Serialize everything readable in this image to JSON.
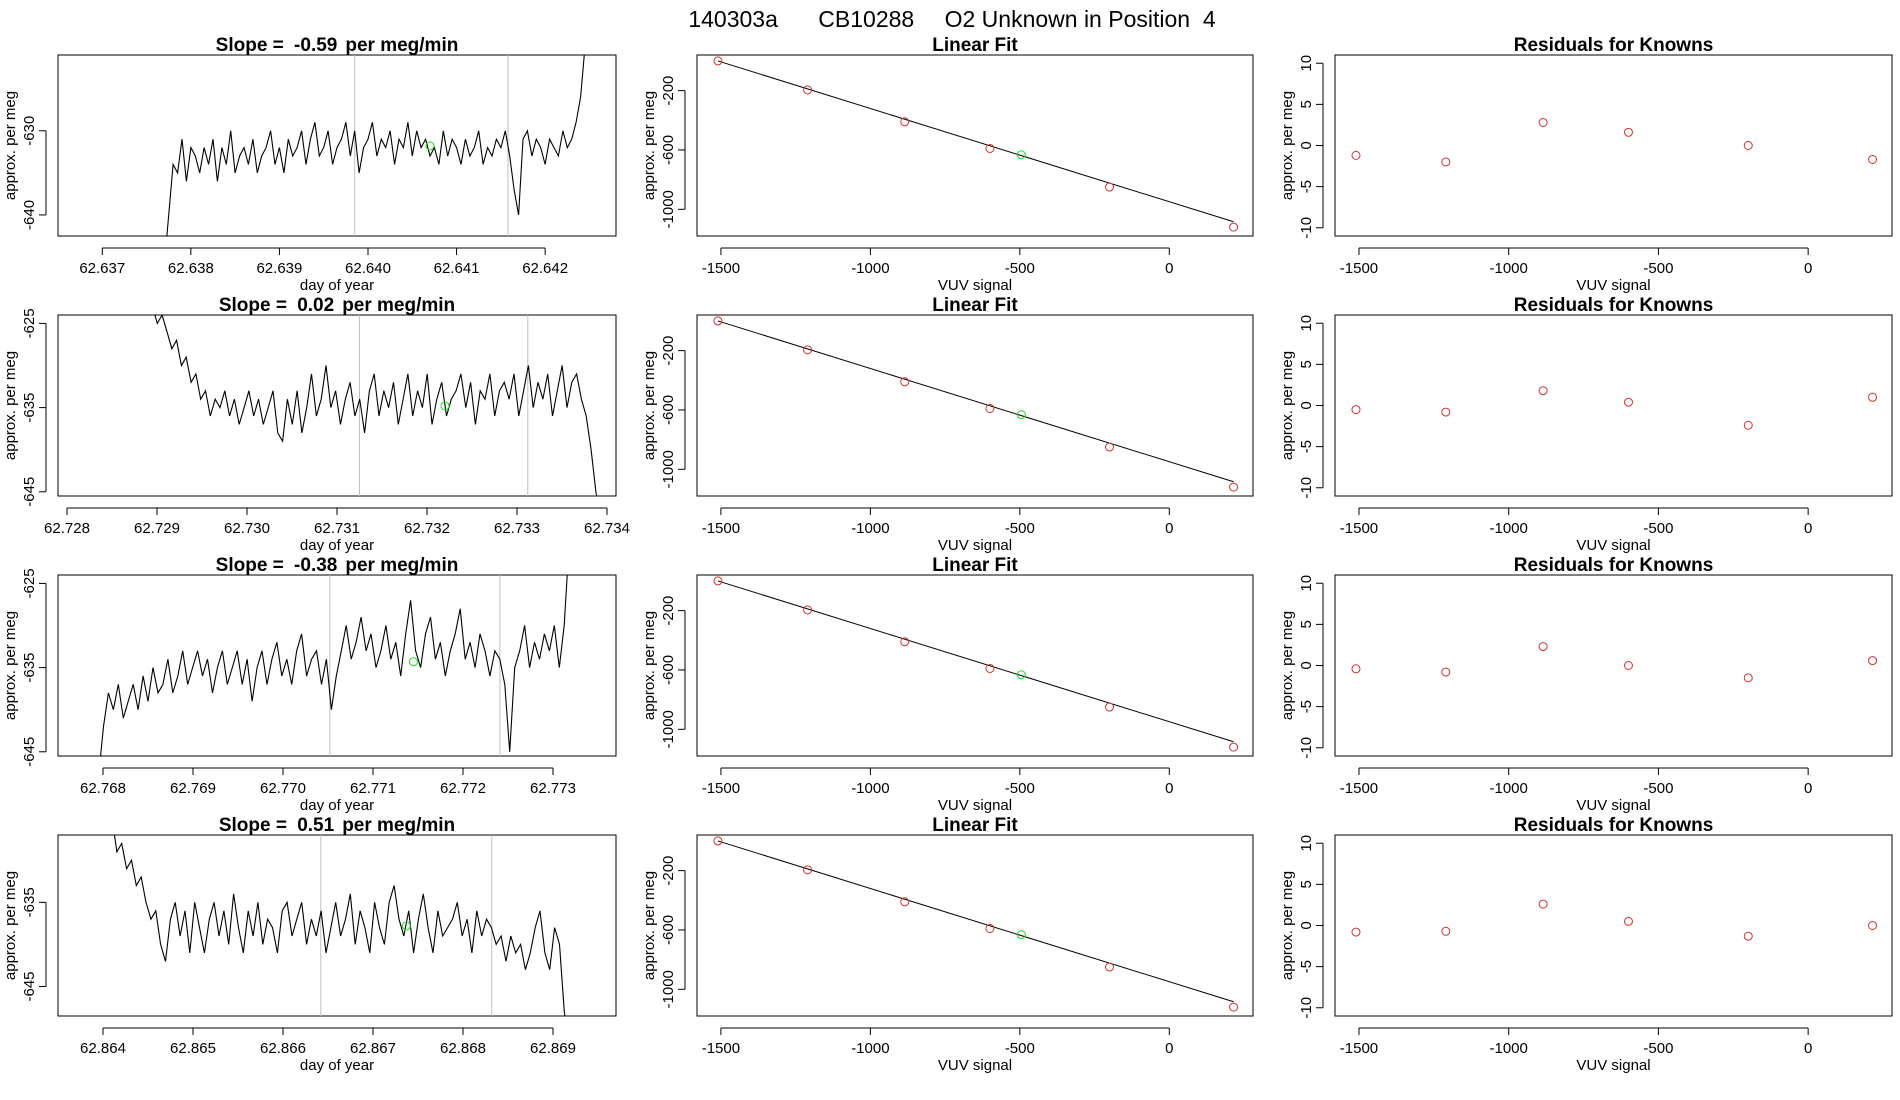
{
  "title": {
    "run": "140303a",
    "cylinder": "CB10288",
    "description": "O2 Unknown in Position  4"
  },
  "colors": {
    "known": "#cd3333",
    "unknown": "#22dd22",
    "line": "#000000",
    "marker": "#bebebe"
  },
  "chart_data": [
    {
      "type": "line",
      "row": 1,
      "panel": "time-series",
      "title_prefix": "Slope = ",
      "slope": "-0.59",
      "title_suffix": "per meg/min",
      "xlabel": "day of year",
      "ylabel": "approx. per meg",
      "xlim": [
        62.6365,
        62.6428
      ],
      "ylim": [
        -642.5,
        -621.0
      ],
      "xticks": [
        "62.637",
        "62.638",
        "62.639",
        "62.640",
        "62.641",
        "62.642"
      ],
      "yticks": [
        "-640",
        "-630"
      ],
      "start": 62.6377,
      "end": 62.64245,
      "series": {
        "name": "signal",
        "values": [
          -646,
          -640,
          -634,
          -635,
          -631,
          -636,
          -632,
          -633,
          -635,
          -632,
          -634,
          -631,
          -636,
          -632,
          -634,
          -630,
          -635,
          -633,
          -632,
          -634,
          -631,
          -635,
          -633,
          -632,
          -630,
          -634,
          -632,
          -635,
          -631,
          -633,
          -632,
          -630,
          -634,
          -631,
          -629,
          -633,
          -632,
          -630,
          -634,
          -632,
          -631,
          -629,
          -633,
          -630,
          -635,
          -632,
          -631,
          -629,
          -633,
          -631,
          -632,
          -630,
          -634,
          -631,
          -632,
          -629,
          -633,
          -630,
          -632,
          -631,
          -633,
          -632,
          -634,
          -630,
          -633,
          -631,
          -632,
          -634,
          -631,
          -633,
          -632,
          -630,
          -634,
          -632,
          -633,
          -631,
          -632,
          -630,
          -633,
          -637,
          -640,
          -631,
          -630,
          -633,
          -631,
          -632,
          -634,
          -631,
          -632,
          -633,
          -630,
          -632,
          -631,
          -629,
          -626,
          -620
        ]
      },
      "vlines": [
        62.63985,
        62.64158
      ],
      "unknown_point": [
        62.6407,
        -631.8
      ]
    },
    {
      "type": "scatter",
      "row": 1,
      "panel": "linear-fit",
      "title": "Linear Fit",
      "xlabel": "VUV signal",
      "ylabel": "approx. per meg",
      "xlim": [
        -1580,
        280
      ],
      "ylim": [
        -1180,
        40
      ],
      "xticks": [
        -1500,
        -1000,
        -500,
        0
      ],
      "yticks": [
        -200,
        -600,
        -1000
      ],
      "fit": {
        "slope": -0.6285,
        "intercept": -1000
      },
      "known_points": [
        [
          -1510,
          0
        ],
        [
          -1210,
          -195
        ],
        [
          -885,
          -410
        ],
        [
          -600,
          -590
        ],
        [
          -200,
          -850
        ],
        [
          215,
          -1120
        ]
      ],
      "unknown_point": [
        -495,
        -632
      ]
    },
    {
      "type": "scatter",
      "row": 1,
      "panel": "residuals",
      "title": "Residuals for Knowns",
      "xlabel": "VUV signal",
      "ylabel": "approx. per meg",
      "xlim": [
        -1580,
        280
      ],
      "ylim": [
        -11,
        11
      ],
      "xticks": [
        -1500,
        -1000,
        -500,
        0
      ],
      "yticks": [
        10,
        5,
        0,
        -5,
        -10
      ],
      "known_points": [
        [
          -1510,
          -1.2
        ],
        [
          -1210,
          -2.0
        ],
        [
          -885,
          2.8
        ],
        [
          -600,
          1.6
        ],
        [
          -200,
          0.0
        ],
        [
          215,
          -1.7
        ]
      ]
    },
    {
      "type": "line",
      "row": 2,
      "panel": "time-series",
      "title_prefix": "Slope = ",
      "slope": "0.02",
      "title_suffix": "per meg/min",
      "xlabel": "day of year",
      "ylabel": "approx. per meg",
      "xlim": [
        62.7279,
        62.7341
      ],
      "ylim": [
        -645.5,
        -624.0
      ],
      "xticks": [
        "62.728",
        "62.729",
        "62.730",
        "62.731",
        "62.732",
        "62.733",
        "62.734"
      ],
      "yticks": [
        "-625",
        "-635",
        "-645"
      ],
      "start": 62.72895,
      "end": 62.73393,
      "series": {
        "name": "signal",
        "values": [
          -623,
          -625,
          -624,
          -626,
          -628,
          -627,
          -630,
          -629,
          -632,
          -631,
          -634,
          -633,
          -636,
          -634,
          -635,
          -633,
          -636,
          -634,
          -637,
          -635,
          -633,
          -636,
          -634,
          -637,
          -635,
          -633,
          -638,
          -639,
          -634,
          -637,
          -633,
          -638,
          -635,
          -631,
          -636,
          -634,
          -630,
          -635,
          -633,
          -637,
          -634,
          -632,
          -636,
          -634,
          -638,
          -633,
          -631,
          -636,
          -633,
          -635,
          -632,
          -637,
          -634,
          -631,
          -636,
          -633,
          -635,
          -631,
          -637,
          -634,
          -632,
          -636,
          -634,
          -633,
          -631,
          -635,
          -632,
          -637,
          -633,
          -634,
          -631,
          -636,
          -633,
          -632,
          -634,
          -631,
          -636,
          -633,
          -630,
          -635,
          -632,
          -634,
          -631,
          -636,
          -633,
          -630,
          -635,
          -632,
          -631,
          -634,
          -636,
          -640,
          -645,
          -648
        ]
      },
      "vlines": [
        62.73125,
        62.73312
      ],
      "unknown_point": [
        62.7322,
        -634.8
      ]
    },
    {
      "type": "scatter",
      "row": 2,
      "panel": "linear-fit",
      "title": "Linear Fit",
      "xlabel": "VUV signal",
      "ylabel": "approx. per meg",
      "xlim": [
        -1580,
        280
      ],
      "ylim": [
        -1180,
        40
      ],
      "xticks": [
        -1500,
        -1000,
        -500,
        0
      ],
      "yticks": [
        -200,
        -600,
        -1000
      ],
      "fit": {
        "slope": -0.6285,
        "intercept": -1000
      },
      "known_points": [
        [
          -1510,
          0
        ],
        [
          -1210,
          -195
        ],
        [
          -885,
          -410
        ],
        [
          -600,
          -590
        ],
        [
          -200,
          -850
        ],
        [
          215,
          -1120
        ]
      ],
      "unknown_point": [
        -495,
        -632
      ]
    },
    {
      "type": "scatter",
      "row": 2,
      "panel": "residuals",
      "title": "Residuals for Knowns",
      "xlabel": "VUV signal",
      "ylabel": "approx. per meg",
      "xlim": [
        -1580,
        280
      ],
      "ylim": [
        -11,
        11
      ],
      "xticks": [
        -1500,
        -1000,
        -500,
        0
      ],
      "yticks": [
        10,
        5,
        0,
        -5,
        -10
      ],
      "known_points": [
        [
          -1510,
          -0.5
        ],
        [
          -1210,
          -0.8
        ],
        [
          -885,
          1.8
        ],
        [
          -600,
          0.4
        ],
        [
          -200,
          -2.4
        ],
        [
          215,
          1.0
        ]
      ]
    },
    {
      "type": "line",
      "row": 3,
      "panel": "time-series",
      "title_prefix": "Slope = ",
      "slope": "-0.38",
      "title_suffix": "per meg/min",
      "xlabel": "day of year",
      "ylabel": "approx. per meg",
      "xlim": [
        62.7675,
        62.7737
      ],
      "ylim": [
        -645.5,
        -624.0
      ],
      "xticks": [
        "62.768",
        "62.769",
        "62.770",
        "62.771",
        "62.772",
        "62.773"
      ],
      "yticks": [
        "-625",
        "-635",
        "-645"
      ],
      "start": 62.76795,
      "end": 62.77318,
      "series": {
        "name": "signal",
        "values": [
          -648,
          -642,
          -638,
          -640,
          -637,
          -641,
          -639,
          -637,
          -640,
          -636,
          -639,
          -635,
          -638,
          -637,
          -634,
          -638,
          -636,
          -633,
          -637,
          -635,
          -633,
          -636,
          -634,
          -638,
          -635,
          -633,
          -637,
          -635,
          -633,
          -637,
          -634,
          -639,
          -635,
          -633,
          -637,
          -634,
          -632,
          -636,
          -634,
          -637,
          -633,
          -631,
          -636,
          -634,
          -633,
          -637,
          -634,
          -640,
          -636,
          -633,
          -630,
          -634,
          -632,
          -629,
          -633,
          -631,
          -635,
          -633,
          -630,
          -634,
          -632,
          -636,
          -631,
          -627,
          -633,
          -635,
          -631,
          -629,
          -634,
          -632,
          -636,
          -633,
          -631,
          -628,
          -634,
          -632,
          -635,
          -631,
          -633,
          -636,
          -633,
          -634,
          -637,
          -645,
          -635,
          -633,
          -630,
          -635,
          -632,
          -634,
          -631,
          -633,
          -630,
          -635,
          -630,
          -620
        ]
      },
      "vlines": [
        62.77052,
        62.77241
      ],
      "unknown_point": [
        62.77145,
        -634.3
      ]
    },
    {
      "type": "scatter",
      "row": 3,
      "panel": "linear-fit",
      "title": "Linear Fit",
      "xlabel": "VUV signal",
      "ylabel": "approx. per meg",
      "xlim": [
        -1580,
        280
      ],
      "ylim": [
        -1180,
        40
      ],
      "xticks": [
        -1500,
        -1000,
        -500,
        0
      ],
      "yticks": [
        -200,
        -600,
        -1000
      ],
      "fit": {
        "slope": -0.6285,
        "intercept": -1000
      },
      "known_points": [
        [
          -1510,
          0
        ],
        [
          -1210,
          -195
        ],
        [
          -885,
          -410
        ],
        [
          -600,
          -590
        ],
        [
          -200,
          -850
        ],
        [
          215,
          -1120
        ]
      ],
      "unknown_point": [
        -495,
        -632
      ]
    },
    {
      "type": "scatter",
      "row": 3,
      "panel": "residuals",
      "title": "Residuals for Knowns",
      "xlabel": "VUV signal",
      "ylabel": "approx. per meg",
      "xlim": [
        -1580,
        280
      ],
      "ylim": [
        -11,
        11
      ],
      "xticks": [
        -1500,
        -1000,
        -500,
        0
      ],
      "yticks": [
        10,
        5,
        0,
        -5,
        -10
      ],
      "known_points": [
        [
          -1510,
          -0.4
        ],
        [
          -1210,
          -0.8
        ],
        [
          -885,
          2.3
        ],
        [
          -600,
          0.0
        ],
        [
          -200,
          -1.5
        ],
        [
          215,
          0.6
        ]
      ]
    },
    {
      "type": "line",
      "row": 4,
      "panel": "time-series",
      "title_prefix": "Slope = ",
      "slope": "0.51",
      "title_suffix": "per meg/min",
      "xlabel": "day of year",
      "ylabel": "approx. per meg",
      "xlim": [
        62.8635,
        62.8697
      ],
      "ylim": [
        -648.5,
        -627.0
      ],
      "xticks": [
        "62.864",
        "62.865",
        "62.866",
        "62.867",
        "62.868",
        "62.869"
      ],
      "yticks": [
        "-635",
        "-645"
      ],
      "start": 62.8641,
      "end": 62.86918,
      "series": {
        "name": "signal",
        "values": [
          -625,
          -629,
          -628,
          -631,
          -630,
          -633,
          -632,
          -635,
          -637,
          -636,
          -640,
          -642,
          -637,
          -635,
          -639,
          -636,
          -641,
          -635,
          -638,
          -641,
          -637,
          -635,
          -639,
          -636,
          -640,
          -634,
          -638,
          -641,
          -636,
          -639,
          -635,
          -640,
          -637,
          -638,
          -641,
          -636,
          -635,
          -639,
          -637,
          -635,
          -640,
          -637,
          -639,
          -636,
          -641,
          -638,
          -635,
          -639,
          -637,
          -634,
          -640,
          -636,
          -638,
          -641,
          -635,
          -638,
          -640,
          -635,
          -633,
          -637,
          -639,
          -636,
          -641,
          -637,
          -634,
          -638,
          -641,
          -636,
          -639,
          -638,
          -637,
          -635,
          -639,
          -637,
          -641,
          -636,
          -639,
          -637,
          -638,
          -640,
          -639,
          -642,
          -639,
          -641,
          -640,
          -643,
          -641,
          -638,
          -636,
          -641,
          -643,
          -638,
          -640,
          -648,
          -652
        ]
      },
      "vlines": [
        62.86642,
        62.86832
      ],
      "unknown_point": [
        62.86737,
        -637.8
      ]
    },
    {
      "type": "scatter",
      "row": 4,
      "panel": "linear-fit",
      "title": "Linear Fit",
      "xlabel": "VUV signal",
      "ylabel": "approx. per meg",
      "xlim": [
        -1580,
        280
      ],
      "ylim": [
        -1180,
        40
      ],
      "xticks": [
        -1500,
        -1000,
        -500,
        0
      ],
      "yticks": [
        -200,
        -600,
        -1000
      ],
      "fit": {
        "slope": -0.6285,
        "intercept": -1000
      },
      "known_points": [
        [
          -1510,
          0
        ],
        [
          -1210,
          -195
        ],
        [
          -885,
          -410
        ],
        [
          -600,
          -590
        ],
        [
          -200,
          -850
        ],
        [
          215,
          -1120
        ]
      ],
      "unknown_point": [
        -495,
        -632
      ]
    },
    {
      "type": "scatter",
      "row": 4,
      "panel": "residuals",
      "title": "Residuals for Knowns",
      "xlabel": "VUV signal",
      "ylabel": "approx. per meg",
      "xlim": [
        -1580,
        280
      ],
      "ylim": [
        -11,
        11
      ],
      "xticks": [
        -1500,
        -1000,
        -500,
        0
      ],
      "yticks": [
        10,
        5,
        0,
        -5,
        -10
      ],
      "known_points": [
        [
          -1510,
          -0.8
        ],
        [
          -1210,
          -0.7
        ],
        [
          -885,
          2.6
        ],
        [
          -600,
          0.5
        ],
        [
          -200,
          -1.3
        ],
        [
          215,
          0.0
        ]
      ]
    }
  ]
}
